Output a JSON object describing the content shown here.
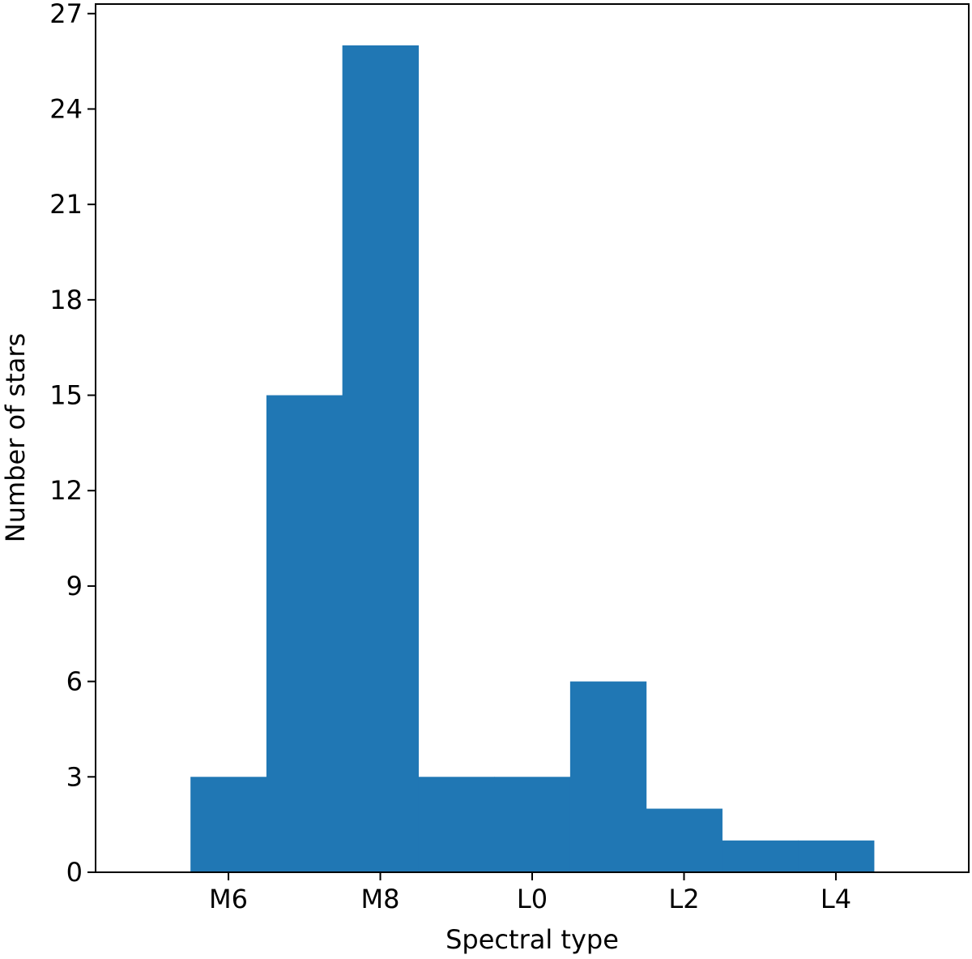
{
  "chart_data": {
    "type": "bar",
    "variant": "histogram",
    "title": "",
    "xlabel": "Spectral type",
    "ylabel": "Number of stars",
    "bin_edges": [
      5.5,
      6.5,
      7.5,
      8.5,
      9.5,
      10.5,
      11.5,
      12.5,
      13.5,
      14.5
    ],
    "values": [
      3,
      15,
      26,
      3,
      3,
      6,
      2,
      1,
      1
    ],
    "xlim": [
      4.25,
      15.75
    ],
    "ylim": [
      0,
      27.3
    ],
    "x_ticks": [
      {
        "value": 6,
        "label": "M6"
      },
      {
        "value": 8,
        "label": "M8"
      },
      {
        "value": 10,
        "label": "L0"
      },
      {
        "value": 12,
        "label": "L2"
      },
      {
        "value": 14,
        "label": "L4"
      }
    ],
    "y_ticks": [
      {
        "value": 0,
        "label": "0"
      },
      {
        "value": 3,
        "label": "3"
      },
      {
        "value": 6,
        "label": "6"
      },
      {
        "value": 9,
        "label": "9"
      },
      {
        "value": 12,
        "label": "12"
      },
      {
        "value": 15,
        "label": "15"
      },
      {
        "value": 18,
        "label": "18"
      },
      {
        "value": 21,
        "label": "21"
      },
      {
        "value": 24,
        "label": "24"
      },
      {
        "value": 27,
        "label": "27"
      }
    ],
    "bar_color": "#2077b4",
    "grid": false,
    "legend": "none"
  }
}
